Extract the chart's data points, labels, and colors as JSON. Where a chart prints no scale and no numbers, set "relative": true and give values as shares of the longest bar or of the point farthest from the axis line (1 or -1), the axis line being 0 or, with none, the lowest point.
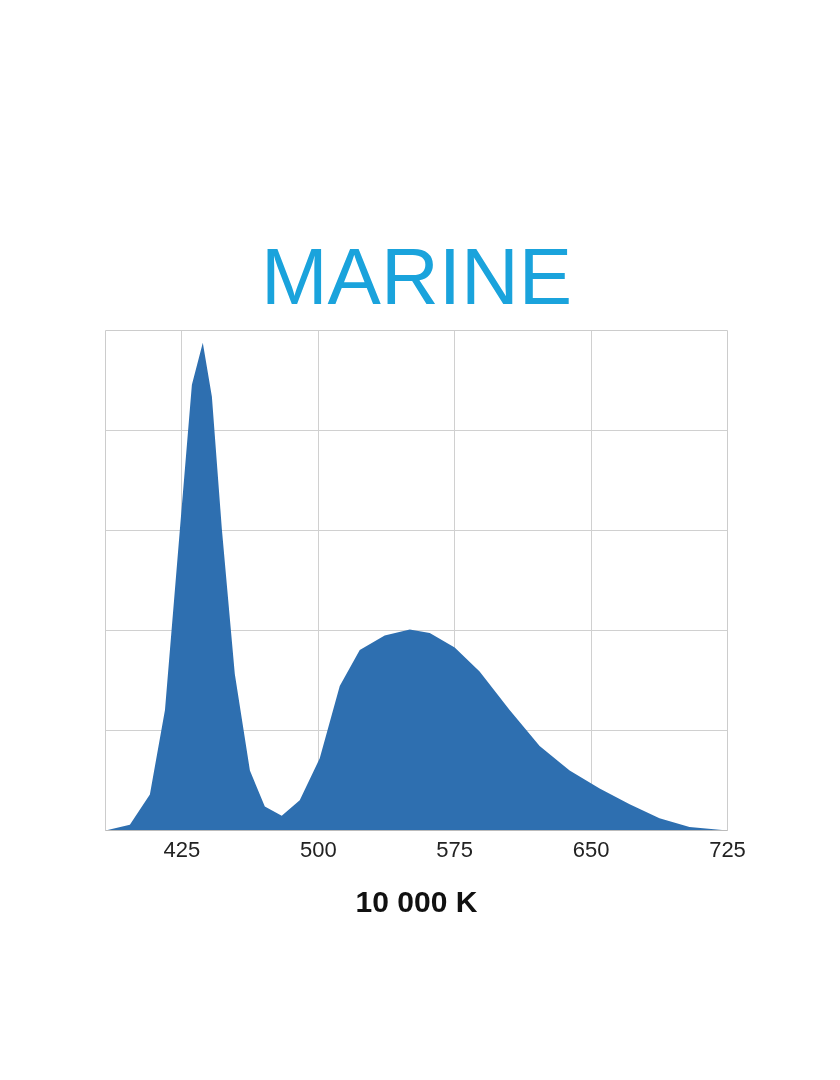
{
  "chart_data": {
    "type": "area",
    "title": "MARINE",
    "xlabel": "10 000 K",
    "relative": true,
    "x": [
      383,
      396.4,
      407.4,
      415.7,
      423.9,
      430.5,
      436.5,
      441.5,
      447,
      454.1,
      462.4,
      470.6,
      479.9,
      489.8,
      500.8,
      511.8,
      522.8,
      536.5,
      550.3,
      561.3,
      575,
      588.7,
      605.2,
      621.7,
      638.2,
      654.7,
      671.2,
      687.6,
      704.1,
      725
    ],
    "series": [
      {
        "color": "#2e6fb0",
        "values": [
          0,
          0.012,
          0.074,
          0.247,
          0.617,
          0.914,
          1.0,
          0.889,
          0.617,
          0.321,
          0.123,
          0.049,
          0.03,
          0.062,
          0.148,
          0.296,
          0.37,
          0.4,
          0.412,
          0.405,
          0.375,
          0.326,
          0.247,
          0.173,
          0.123,
          0.086,
          0.054,
          0.025,
          0.007,
          0
        ]
      }
    ],
    "xlim": [
      383,
      725
    ],
    "xticks": [
      425,
      500,
      575,
      650,
      725
    ],
    "grid": true
  }
}
